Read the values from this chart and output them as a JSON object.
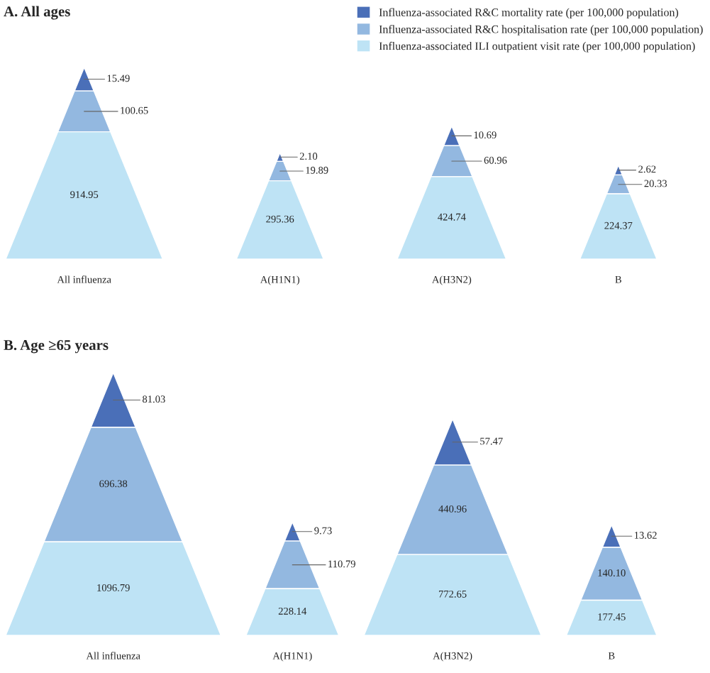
{
  "chart_data": [
    {
      "type": "other",
      "title": "A. All ages",
      "categories": [
        "All influenza",
        "A(H1N1)",
        "A(H3N2)",
        "B"
      ],
      "legend": "top right",
      "series": [
        {
          "name": "Influenza-associated ILI outpatient visit rate (per 100,000 population)",
          "color": "#bee3f5",
          "values": [
            914.95,
            295.36,
            424.74,
            224.37
          ],
          "value_labels": [
            "914.95",
            "295.36",
            "424.74",
            "224.37"
          ]
        },
        {
          "name": "Influenza-associated R&C hospitalisation rate (per 100,000 population)",
          "color": "#93b8e0",
          "values": [
            100.65,
            19.89,
            60.96,
            20.33
          ],
          "value_labels": [
            "100.65",
            "19.89",
            "60.96",
            "20.33"
          ]
        },
        {
          "name": "Influenza-associated R&C mortality rate (per 100,000 population)",
          "color": "#4a6fb8",
          "values": [
            15.49,
            2.1,
            10.69,
            2.62
          ],
          "value_labels": [
            "15.49",
            "2.10",
            "10.69",
            "2.62"
          ]
        }
      ]
    },
    {
      "type": "other",
      "title": "B. Age ≥65 years",
      "categories": [
        "All influenza",
        "A(H1N1)",
        "A(H3N2)",
        "B"
      ],
      "series": [
        {
          "color": "#bee3f5",
          "values": [
            1096.79,
            228.14,
            772.65,
            177.45
          ],
          "value_labels": [
            "1096.79",
            "228.14",
            "772.65",
            "177.45"
          ]
        },
        {
          "color": "#93b8e0",
          "values": [
            696.38,
            110.79,
            440.96,
            140.1
          ],
          "value_labels": [
            "696.38",
            "110.79",
            "440.96",
            "140.10"
          ]
        },
        {
          "color": "#4a6fb8",
          "values": [
            81.03,
            9.73,
            57.47,
            13.62
          ],
          "value_labels": [
            "81.03",
            "9.73",
            "57.47",
            "13.62"
          ]
        }
      ]
    }
  ]
}
